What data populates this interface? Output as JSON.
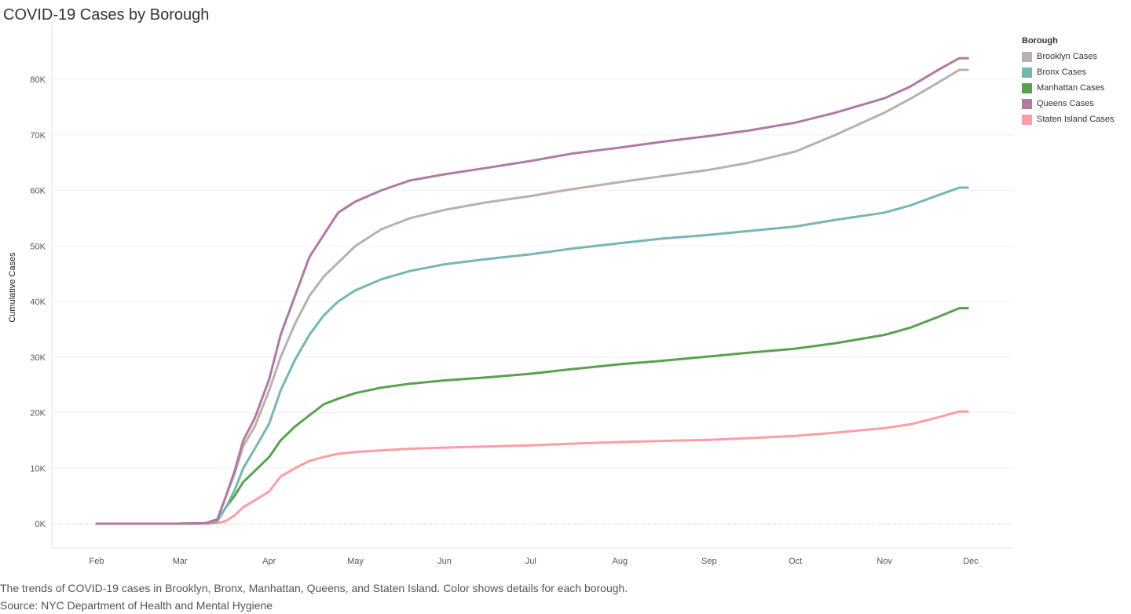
{
  "title": "COVID-19 Cases by Borough",
  "caption": "The trends of COVID-19 cases in Brooklyn, Bronx, Manhattan, Queens, and Staten Island.  Color shows details for each borough.",
  "source": "Source: NYC Department of Health and Mental Hygiene",
  "legend": {
    "title": "Borough",
    "items": [
      {
        "label": "Brooklyn Cases",
        "color": "#bab0ac"
      },
      {
        "label": "Bronx Cases",
        "color": "#76b7b2"
      },
      {
        "label": "Manhattan Cases",
        "color": "#59a14f"
      },
      {
        "label": "Queens Cases",
        "color": "#b07aa1"
      },
      {
        "label": "Staten Island Cases",
        "color": "#ff9da7"
      }
    ]
  },
  "chart_data": {
    "type": "line",
    "title": "COVID-19 Cases by Borough",
    "xlabel": "",
    "ylabel": "Cumulative Cases",
    "x_tick_labels": [
      "Feb",
      "Mar",
      "Apr",
      "May",
      "Jun",
      "Jul",
      "Aug",
      "Sep",
      "Oct",
      "Nov",
      "Dec"
    ],
    "y_tick_labels": [
      "0K",
      "10K",
      "20K",
      "30K",
      "40K",
      "50K",
      "60K",
      "70K",
      "80K"
    ],
    "y_ticks": [
      0,
      10000,
      20000,
      30000,
      40000,
      50000,
      60000,
      70000,
      80000
    ],
    "ylim": [
      0,
      86000
    ],
    "xlim": [
      "2020-02-01",
      "2020-12-01"
    ],
    "grid": "horizontal",
    "legend_position": "right",
    "x": [
      "2020-02-29",
      "2020-03-10",
      "2020-03-14",
      "2020-03-17",
      "2020-03-20",
      "2020-03-23",
      "2020-03-27",
      "2020-04-01",
      "2020-04-05",
      "2020-04-10",
      "2020-04-15",
      "2020-04-20",
      "2020-04-25",
      "2020-05-01",
      "2020-05-10",
      "2020-05-20",
      "2020-06-01",
      "2020-06-15",
      "2020-07-01",
      "2020-07-15",
      "2020-08-01",
      "2020-08-15",
      "2020-09-01",
      "2020-09-15",
      "2020-10-01",
      "2020-10-15",
      "2020-11-01",
      "2020-11-10",
      "2020-11-20",
      "2020-11-27",
      "2020-11-30"
    ],
    "series": [
      {
        "name": "Brooklyn Cases",
        "color": "#bab0ac",
        "values": [
          0,
          100,
          800,
          5000,
          9000,
          14000,
          17500,
          24000,
          30000,
          36000,
          41000,
          44500,
          47000,
          50000,
          53000,
          55000,
          56500,
          57800,
          59000,
          60200,
          61500,
          62500,
          63700,
          65000,
          67000,
          70000,
          74000,
          76500,
          79500,
          81700,
          81700
        ]
      },
      {
        "name": "Bronx Cases",
        "color": "#76b7b2",
        "values": [
          0,
          80,
          600,
          3000,
          6000,
          10000,
          13500,
          18000,
          24000,
          29500,
          34000,
          37500,
          40000,
          42000,
          44000,
          45500,
          46700,
          47600,
          48500,
          49500,
          50500,
          51300,
          52000,
          52700,
          53500,
          54700,
          56000,
          57300,
          59200,
          60500,
          60500
        ]
      },
      {
        "name": "Manhattan Cases",
        "color": "#59a14f",
        "values": [
          0,
          60,
          500,
          3000,
          5000,
          7500,
          9500,
          12000,
          15000,
          17500,
          19500,
          21500,
          22500,
          23500,
          24500,
          25200,
          25800,
          26300,
          27000,
          27800,
          28700,
          29300,
          30100,
          30800,
          31500,
          32500,
          34000,
          35300,
          37300,
          38800,
          38800
        ]
      },
      {
        "name": "Queens Cases",
        "color": "#b07aa1",
        "values": [
          0,
          120,
          800,
          5000,
          9500,
          15000,
          19000,
          26000,
          34000,
          41000,
          48000,
          52000,
          56000,
          58000,
          60000,
          61800,
          62900,
          64000,
          65300,
          66600,
          67700,
          68700,
          69800,
          70800,
          72200,
          74000,
          76600,
          78700,
          81800,
          83800,
          83800
        ]
      },
      {
        "name": "Staten Island Cases",
        "color": "#ff9da7",
        "values": [
          0,
          20,
          100,
          500,
          1500,
          3000,
          4200,
          5800,
          8500,
          10000,
          11300,
          12000,
          12600,
          12900,
          13200,
          13500,
          13700,
          13900,
          14100,
          14400,
          14700,
          14900,
          15100,
          15400,
          15800,
          16400,
          17200,
          17900,
          19200,
          20200,
          20200
        ]
      }
    ]
  }
}
